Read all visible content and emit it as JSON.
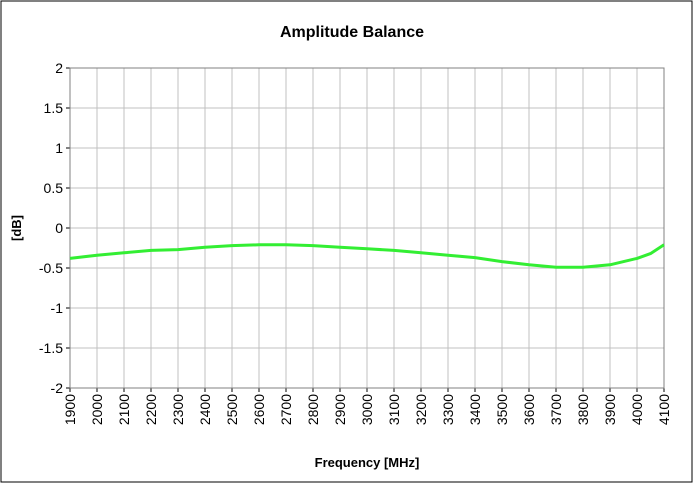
{
  "chart_data": {
    "type": "line",
    "title": "Amplitude Balance",
    "x_label": "Frequency [MHz]",
    "y_label": "[dB]",
    "x": [
      1900,
      2000,
      2100,
      2200,
      2300,
      2400,
      2500,
      2600,
      2700,
      2800,
      2900,
      3000,
      3100,
      3200,
      3300,
      3400,
      3500,
      3600,
      3700,
      3800,
      3900,
      4000,
      4050,
      4100
    ],
    "series": [
      {
        "name": "Amplitude Balance",
        "color": "#33ee33",
        "values": [
          -0.38,
          -0.34,
          -0.31,
          -0.28,
          -0.27,
          -0.24,
          -0.22,
          -0.21,
          -0.21,
          -0.22,
          -0.24,
          -0.26,
          -0.28,
          -0.31,
          -0.34,
          -0.37,
          -0.42,
          -0.46,
          -0.49,
          -0.49,
          -0.46,
          -0.38,
          -0.32,
          -0.21
        ]
      }
    ],
    "xlim": [
      1900,
      4100
    ],
    "xticks": [
      1900,
      2000,
      2100,
      2200,
      2300,
      2400,
      2500,
      2600,
      2700,
      2800,
      2900,
      3000,
      3100,
      3200,
      3300,
      3400,
      3500,
      3600,
      3700,
      3800,
      3900,
      4000,
      4100
    ],
    "ylim": [
      -2,
      2
    ],
    "yticks": [
      -2,
      -1.5,
      -1,
      -0.5,
      0,
      0.5,
      1,
      1.5,
      2
    ],
    "grid": true
  }
}
